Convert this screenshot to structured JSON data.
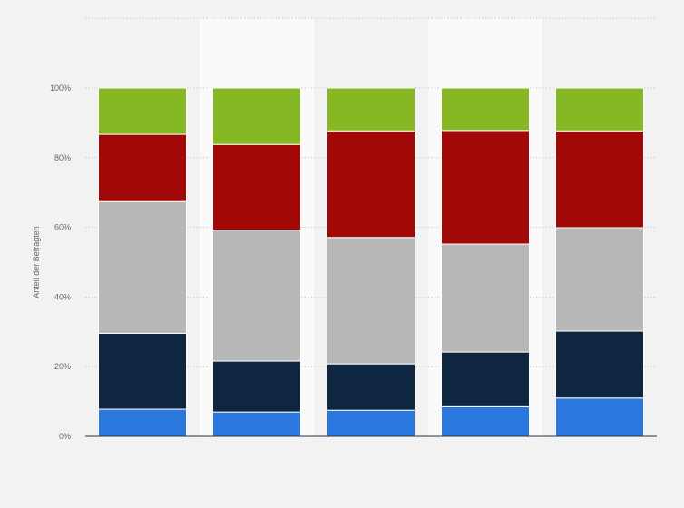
{
  "chart_data": {
    "type": "bar",
    "stacked": true,
    "percent": true,
    "categories": [
      "",
      "",
      "",
      "",
      ""
    ],
    "ylabel": "Anteil der Befragten",
    "ylim": [
      0,
      100
    ],
    "yticks": [
      "0%",
      "20%",
      "40%",
      "60%",
      "80%",
      "100%"
    ],
    "grid": true,
    "legend": "none",
    "series": [
      {
        "color": "#2a77dd",
        "values": [
          7.8,
          7.0,
          7.5,
          8.5,
          11.0
        ]
      },
      {
        "color": "#0f2640",
        "values": [
          21.8,
          14.6,
          13.3,
          15.7,
          19.2
        ]
      },
      {
        "color": "#b7b7b7",
        "values": [
          37.8,
          37.6,
          36.3,
          31.0,
          29.7
        ]
      },
      {
        "color": "#a20808",
        "values": [
          19.3,
          24.6,
          30.6,
          32.6,
          27.8
        ]
      },
      {
        "color": "#86b824",
        "values": [
          13.3,
          16.2,
          12.3,
          12.2,
          12.3
        ]
      }
    ],
    "highlight_bands": [
      1,
      3
    ]
  }
}
